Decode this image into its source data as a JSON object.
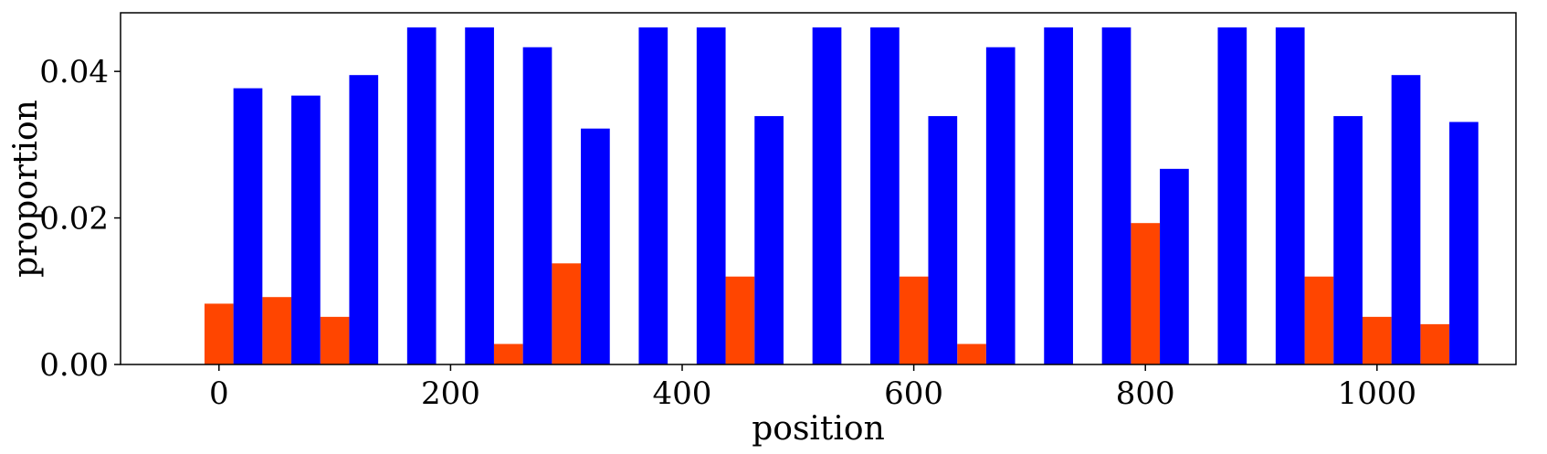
{
  "chart_data": {
    "type": "bar",
    "title": "",
    "xlabel": "position",
    "ylabel": "proportion",
    "xlim": [
      -85,
      1120
    ],
    "ylim": [
      0,
      0.048
    ],
    "bar_width": 25,
    "grid": false,
    "x_ticks": [
      0,
      200,
      400,
      600,
      800,
      1000
    ],
    "x_tick_labels": [
      "0",
      "200",
      "400",
      "600",
      "800",
      "1000"
    ],
    "y_ticks": [
      0,
      0.02,
      0.04
    ],
    "y_tick_labels": [
      "0.00",
      "0.02",
      "0.04"
    ],
    "series": [
      {
        "color": "#ff4500",
        "x": [
          0,
          50,
          100,
          250,
          300,
          450,
          600,
          650,
          800,
          950,
          1000,
          1050
        ],
        "values": [
          0.0083,
          0.0092,
          0.0065,
          0.0028,
          0.0138,
          0.012,
          0.012,
          0.0028,
          0.0193,
          0.012,
          0.0065,
          0.0055
        ]
      },
      {
        "color": "#0000ff",
        "x": [
          25,
          75,
          125,
          175,
          225,
          275,
          325,
          375,
          425,
          475,
          525,
          575,
          625,
          675,
          725,
          775,
          825,
          875,
          925,
          975,
          1025,
          1075
        ],
        "values": [
          0.0377,
          0.0367,
          0.0395,
          0.046,
          0.046,
          0.0433,
          0.0322,
          0.046,
          0.046,
          0.0339,
          0.046,
          0.046,
          0.0339,
          0.0433,
          0.046,
          0.046,
          0.0267,
          0.046,
          0.046,
          0.0339,
          0.0395,
          0.0331
        ]
      }
    ]
  }
}
